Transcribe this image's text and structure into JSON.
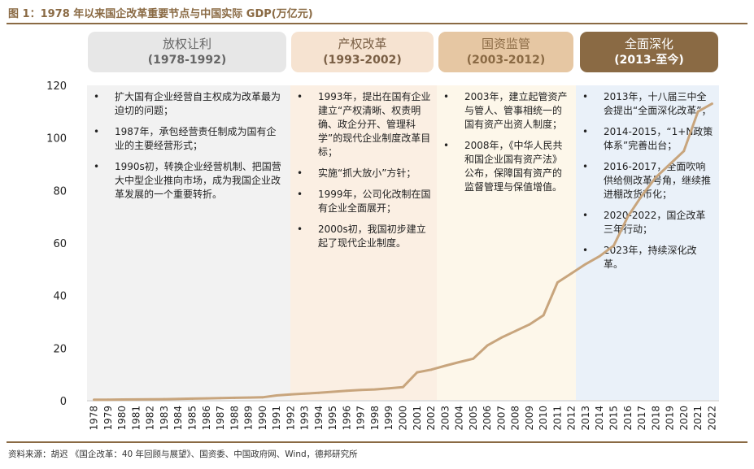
{
  "figure": {
    "title": "图 1：1978 年以来国企改革重要节点与中国实际 GDP(万亿元)",
    "source": "资料来源：胡迟 《国企改革：40 年回顾与展望》、国资委、中国政府网、Wind，德邦研究所"
  },
  "eras": [
    {
      "name": "放权让利",
      "years": "(1978-1992)",
      "head_bg": "#e7e7e7",
      "head_fg": "#666666",
      "box_bg": "#f2f2f2",
      "bullets": [
        "扩大国有企业经营自主权成为改革最为迫切的问题；",
        "1987年，承包经营责任制成为国有企业的主要经营形式；",
        "1990s初，转换企业经营机制、把国营大中型企业推向市场，成为我国企业改革发展的一个重要转折。"
      ]
    },
    {
      "name": "产权改革",
      "years": "(1993-2002)",
      "head_bg": "#f6e3d1",
      "head_fg": "#7a5f45",
      "box_bg": "#fbefe3",
      "bullets": [
        "1993年，提出在国有企业建立“产权清晰、权责明确、政企分开、管理科学”的现代企业制度改革目标；",
        "实施“抓大放小”方针；",
        "1999年，公司化改制在国有企业全面展开；",
        "2000s初，我国初步建立起了现代企业制度。"
      ]
    },
    {
      "name": "国资监管",
      "years": "(2003-2012)",
      "head_bg": "#e6c7a3",
      "head_fg": "#8a6a44",
      "box_bg": "#fdf7ea",
      "bullets": [
        "2003年，建立起管资产与管人、管事相统一的国有资产出资人制度；",
        "2008年，《中华人民共和国企业国有资产法》公布，保障国有资产的监督管理与保值增值。"
      ]
    },
    {
      "name": "全面深化",
      "years": "(2013-至今)",
      "head_bg": "#8a6a44",
      "head_fg": "#ffffff",
      "box_bg": "#eaf1f9",
      "bullets": [
        "2013年，十八届三中全会提出“全面深化改革”；",
        "2014-2015，“1+N政策体系”完善出台；",
        "2016-2017，全面吹响供给侧改革号角，继续推进棚改货币化；",
        "2020-2022，国企改革三年行动；",
        "2023年，持续深化改革。"
      ]
    }
  ],
  "chart_data": {
    "type": "line",
    "title": "1978 年以来国企改革重要节点与中国实际 GDP(万亿元)",
    "x": [
      1978,
      1979,
      1980,
      1981,
      1982,
      1983,
      1984,
      1985,
      1986,
      1987,
      1988,
      1989,
      1990,
      1991,
      1992,
      1993,
      1994,
      1995,
      1996,
      1997,
      1998,
      1999,
      2000,
      2001,
      2002,
      2003,
      2004,
      2005,
      2006,
      2007,
      2008,
      2009,
      2010,
      2011,
      2012,
      2013,
      2014,
      2015,
      2016,
      2017,
      2018,
      2019,
      2020,
      2021,
      2022
    ],
    "series": [
      {
        "name": "",
        "color": "#c8a57d",
        "values": [
          0.37,
          0.41,
          0.46,
          0.49,
          0.54,
          0.6,
          0.7,
          0.8,
          0.9,
          1.0,
          1.1,
          1.2,
          1.3,
          2.0,
          2.4,
          2.7,
          3.0,
          3.4,
          3.8,
          4.1,
          4.3,
          4.7,
          5.2,
          10.8,
          11.8,
          13.3,
          14.7,
          16.0,
          21.0,
          24.0,
          26.5,
          29.0,
          32.5,
          45.0,
          48.5,
          52.0,
          55.0,
          59.0,
          70.0,
          78.0,
          85.0,
          90.0,
          95.0,
          110.0,
          113.0
        ]
      }
    ],
    "xlabel": "",
    "ylabel": "",
    "ylim": [
      0,
      120
    ],
    "yticks": [
      0,
      20,
      40,
      60,
      80,
      100,
      120
    ],
    "grid": false
  }
}
